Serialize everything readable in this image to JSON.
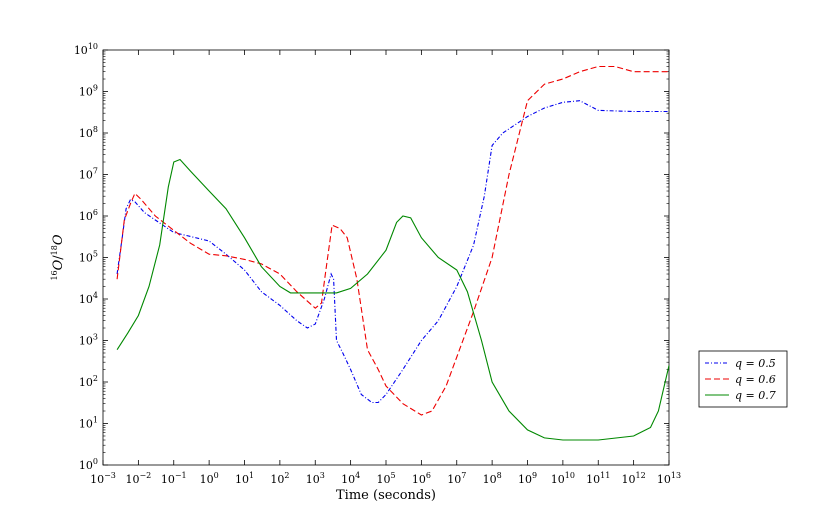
{
  "chart_data": {
    "type": "line",
    "xlabel": "Time (seconds)",
    "ylabel": "16O/18O",
    "xscale": "log",
    "yscale": "log",
    "xlim": [
      0.001,
      10000000000000.0
    ],
    "ylim": [
      1,
      10000000000.0
    ],
    "grid": false,
    "legend_position": "right, outside plot",
    "x_tick_exponents": [
      -3,
      -2,
      -1,
      0,
      1,
      2,
      3,
      4,
      5,
      6,
      7,
      8,
      9,
      10,
      11,
      12,
      13
    ],
    "y_tick_exponents": [
      0,
      1,
      2,
      3,
      4,
      5,
      6,
      7,
      8,
      9,
      10
    ],
    "series": [
      {
        "name": "q = 0.5",
        "color": "#0000ee",
        "dash": "dash-dot",
        "points": [
          [
            0.0025,
            40000
          ],
          [
            0.0035,
            300000
          ],
          [
            0.0045,
            1500000
          ],
          [
            0.006,
            2500000
          ],
          [
            0.008,
            2200000
          ],
          [
            0.015,
            1200000
          ],
          [
            0.03,
            800000
          ],
          [
            0.1,
            400000
          ],
          [
            0.3,
            320000
          ],
          [
            1,
            250000
          ],
          [
            3,
            120000
          ],
          [
            10,
            50000
          ],
          [
            30,
            15000
          ],
          [
            100,
            7000
          ],
          [
            300,
            3000
          ],
          [
            600,
            2000
          ],
          [
            1000,
            2500
          ],
          [
            1800,
            10000
          ],
          [
            2800,
            40000
          ],
          [
            3300,
            30000
          ],
          [
            4000,
            1000
          ],
          [
            6000,
            500
          ],
          [
            10000,
            200
          ],
          [
            20000,
            50
          ],
          [
            40000,
            32
          ],
          [
            60000,
            32
          ],
          [
            100000,
            50
          ],
          [
            300000,
            200
          ],
          [
            1000000,
            1000
          ],
          [
            3000000,
            3000
          ],
          [
            10000000,
            20000
          ],
          [
            30000000,
            200000
          ],
          [
            60000000,
            3000000
          ],
          [
            100000000,
            50000000
          ],
          [
            200000000,
            100000000
          ],
          [
            1000000000,
            250000000
          ],
          [
            3000000000,
            400000000
          ],
          [
            10000000000,
            550000000
          ],
          [
            30000000000,
            600000000
          ],
          [
            100000000000,
            350000000
          ],
          [
            1000000000000,
            330000000
          ],
          [
            10000000000000,
            330000000
          ]
        ]
      },
      {
        "name": "q = 0.6",
        "color": "#ee0000",
        "dash": "dashed",
        "points": [
          [
            0.0025,
            30000
          ],
          [
            0.004,
            800000
          ],
          [
            0.006,
            2000000
          ],
          [
            0.008,
            3500000
          ],
          [
            0.012,
            2500000
          ],
          [
            0.03,
            1000000
          ],
          [
            0.1,
            450000
          ],
          [
            0.3,
            220000
          ],
          [
            1,
            120000
          ],
          [
            3,
            110000
          ],
          [
            10,
            90000
          ],
          [
            30,
            70000
          ],
          [
            100,
            40000
          ],
          [
            300,
            15000
          ],
          [
            1000,
            6000
          ],
          [
            1500,
            8000
          ],
          [
            2000,
            50000
          ],
          [
            3000,
            600000
          ],
          [
            5000,
            500000
          ],
          [
            8000,
            300000
          ],
          [
            15000,
            30000
          ],
          [
            30000,
            600
          ],
          [
            60000,
            200
          ],
          [
            100000,
            80
          ],
          [
            300000,
            30
          ],
          [
            1000000,
            16
          ],
          [
            2000000,
            20
          ],
          [
            5000000,
            80
          ],
          [
            10000000,
            400
          ],
          [
            30000000,
            5000
          ],
          [
            100000000,
            100000
          ],
          [
            300000000,
            10000000
          ],
          [
            1000000000,
            600000000
          ],
          [
            3000000000,
            1500000000
          ],
          [
            10000000000,
            2000000000
          ],
          [
            30000000000,
            3000000000
          ],
          [
            100000000000,
            4000000000
          ],
          [
            300000000000,
            4000000000
          ],
          [
            1000000000000,
            3000000000
          ],
          [
            10000000000000,
            3000000000
          ]
        ]
      },
      {
        "name": "q = 0.7",
        "color": "#008800",
        "dash": "solid",
        "points": [
          [
            0.0025,
            600
          ],
          [
            0.005,
            1500
          ],
          [
            0.01,
            4000
          ],
          [
            0.02,
            20000
          ],
          [
            0.04,
            200000
          ],
          [
            0.07,
            5000000
          ],
          [
            0.1,
            20000000
          ],
          [
            0.15,
            23000000
          ],
          [
            0.3,
            12000000
          ],
          [
            1,
            4000000
          ],
          [
            3,
            1500000
          ],
          [
            10,
            300000
          ],
          [
            30,
            60000
          ],
          [
            100,
            20000
          ],
          [
            200,
            14000
          ],
          [
            1000,
            14000
          ],
          [
            4000,
            14000
          ],
          [
            10000,
            18000
          ],
          [
            30000,
            40000
          ],
          [
            100000,
            150000
          ],
          [
            200000,
            700000
          ],
          [
            300000,
            1000000
          ],
          [
            500000,
            900000
          ],
          [
            1000000,
            300000
          ],
          [
            3000000,
            100000
          ],
          [
            10000000,
            50000
          ],
          [
            20000000,
            15000
          ],
          [
            50000000,
            1000
          ],
          [
            100000000,
            100
          ],
          [
            300000000,
            20
          ],
          [
            1000000000,
            7
          ],
          [
            3000000000,
            4.5
          ],
          [
            10000000000,
            4
          ],
          [
            100000000000,
            4
          ],
          [
            1000000000000,
            5
          ],
          [
            3000000000000,
            8
          ],
          [
            5000000000000,
            20
          ],
          [
            10000000000000,
            250
          ]
        ]
      }
    ]
  },
  "legend": {
    "items": [
      {
        "label": "q = 0.5",
        "color": "#0000ee",
        "dash": "4,2,1,2"
      },
      {
        "label": "q = 0.6",
        "color": "#ee0000",
        "dash": "6,3"
      },
      {
        "label": "q = 0.7",
        "color": "#008800",
        "dash": ""
      }
    ]
  }
}
